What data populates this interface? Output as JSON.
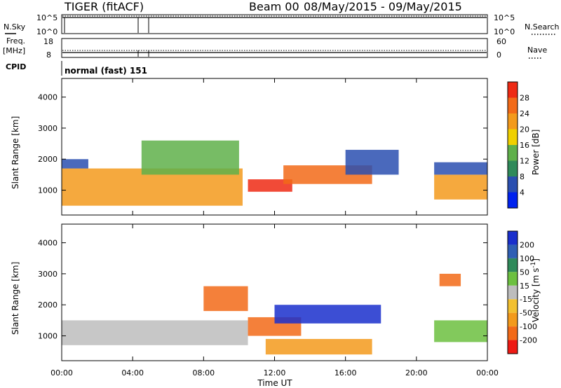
{
  "header": {
    "radar": "TIGER (fitACF)",
    "beam": "Beam 00",
    "date_range": "08/May/2015 - 09/May/2015"
  },
  "chart_data": [
    {
      "panel": "sky-search-noise",
      "type": "line",
      "left_label": "N.Sky",
      "right_label": "N.Search",
      "left_ticks": [
        "10^5",
        "10^0"
      ],
      "right_ticks": [
        "10^5",
        "10^0"
      ],
      "scale": "log"
    },
    {
      "panel": "frequency-nave",
      "type": "line",
      "left_label_line1": "Freq.",
      "left_label_line2": "[MHz]",
      "right_label": "Nave",
      "left_ticks": [
        "18",
        "8"
      ],
      "right_ticks": [
        "60",
        "0"
      ],
      "ylim_left": [
        8,
        18
      ],
      "ylim_right": [
        0,
        60
      ]
    },
    {
      "panel": "cpid",
      "type": "table",
      "label": "CPID",
      "value": "normal (fast) 151"
    },
    {
      "panel": "power",
      "type": "heatmap",
      "ylabel": "Slant Range [km]",
      "yticks": [
        1000,
        2000,
        3000,
        4000
      ],
      "ylim": [
        200,
        4600
      ],
      "colorbar_label": "Power [dB]",
      "colorbar_ticks": [
        4,
        8,
        12,
        16,
        20,
        24,
        28
      ],
      "colorbar_range": [
        0,
        32
      ],
      "colors": [
        "#0022ee",
        "#2a4fb0",
        "#2f8a5a",
        "#5fb04a",
        "#f0d000",
        "#f39a1c",
        "#f26a18",
        "#ee2a14"
      ],
      "regions": [
        {
          "x": [
            0,
            10.2
          ],
          "y": [
            500,
            1700
          ],
          "value": 20
        },
        {
          "x": [
            0,
            1.5
          ],
          "y": [
            1700,
            2000
          ],
          "value": 6
        },
        {
          "x": [
            4.5,
            10
          ],
          "y": [
            1500,
            2600
          ],
          "value": 14
        },
        {
          "x": [
            10.5,
            13
          ],
          "y": [
            950,
            1350
          ],
          "value": 28
        },
        {
          "x": [
            12.5,
            17.5
          ],
          "y": [
            1200,
            1800
          ],
          "value": 24
        },
        {
          "x": [
            16,
            19
          ],
          "y": [
            1500,
            2300
          ],
          "value": 6
        },
        {
          "x": [
            21,
            24
          ],
          "y": [
            700,
            1500
          ],
          "value": 22
        },
        {
          "x": [
            21,
            24
          ],
          "y": [
            1500,
            1900
          ],
          "value": 6
        }
      ]
    },
    {
      "panel": "velocity",
      "type": "heatmap",
      "ylabel": "Slant Range [km]",
      "yticks": [
        1000,
        2000,
        3000,
        4000
      ],
      "ylim": [
        200,
        4600
      ],
      "xlabel": "Time UT",
      "xticks": [
        "00:00",
        "04:00",
        "08:00",
        "12:00",
        "16:00",
        "20:00",
        "00:00"
      ],
      "xlim_hours": [
        0,
        24
      ],
      "colorbar_label_text": "Velocity [m s",
      "colorbar_label_exp": "-1",
      "colorbar_label_close": "]",
      "colorbar_ticks": [
        200,
        100,
        50,
        15,
        -15,
        -50,
        -100,
        -200
      ],
      "colors": [
        "#1a2fcc",
        "#2f5fb4",
        "#2f8a5a",
        "#6cc040",
        "#bdbdbd",
        "#f2c030",
        "#f39a1c",
        "#f26a18",
        "#ee1a14"
      ],
      "regions": [
        {
          "x": [
            0,
            10.5
          ],
          "y": [
            700,
            1500
          ],
          "value": 0
        },
        {
          "x": [
            8,
            10.5
          ],
          "y": [
            1800,
            2600
          ],
          "value": -200
        },
        {
          "x": [
            10.5,
            13.5
          ],
          "y": [
            1000,
            1600
          ],
          "value": -200
        },
        {
          "x": [
            12,
            18
          ],
          "y": [
            1400,
            2000
          ],
          "value": 200
        },
        {
          "x": [
            11.5,
            17.5
          ],
          "y": [
            400,
            900
          ],
          "value": -60
        },
        {
          "x": [
            21,
            24
          ],
          "y": [
            800,
            1500
          ],
          "value": 20
        },
        {
          "x": [
            21.3,
            22.5
          ],
          "y": [
            2600,
            3000
          ],
          "value": -200
        }
      ]
    }
  ]
}
